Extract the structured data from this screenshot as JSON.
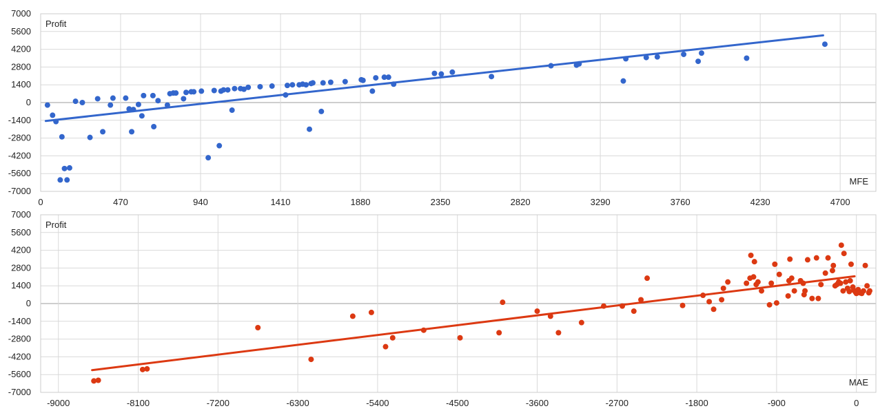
{
  "chart_data": [
    {
      "type": "scatter",
      "ylabel": "Profit",
      "xlabel": "MFE",
      "xlim": [
        0,
        4910
      ],
      "ylim": [
        -7000,
        7000
      ],
      "xticks": [
        0,
        470,
        940,
        1410,
        1880,
        2350,
        2820,
        3290,
        3760,
        4230,
        4700
      ],
      "yticks": [
        7000,
        5600,
        4200,
        2800,
        1400,
        0,
        -1400,
        -2800,
        -4200,
        -5600,
        -7000
      ],
      "grid": true,
      "legend": "none",
      "color": "#3366cc",
      "trendline": {
        "x": [
          30,
          4600
        ],
        "y": [
          -1450,
          5300
        ]
      },
      "points": [
        [
          40,
          -200
        ],
        [
          70,
          -1000
        ],
        [
          90,
          -1500
        ],
        [
          115,
          -6100
        ],
        [
          125,
          -2700
        ],
        [
          140,
          -5200
        ],
        [
          155,
          -6100
        ],
        [
          170,
          -5150
        ],
        [
          205,
          100
        ],
        [
          245,
          0
        ],
        [
          290,
          -2750
        ],
        [
          335,
          300
        ],
        [
          365,
          -2300
        ],
        [
          410,
          -200
        ],
        [
          425,
          350
        ],
        [
          500,
          350
        ],
        [
          520,
          -500
        ],
        [
          535,
          -2300
        ],
        [
          545,
          -550
        ],
        [
          575,
          -150
        ],
        [
          595,
          -1050
        ],
        [
          605,
          550
        ],
        [
          660,
          550
        ],
        [
          665,
          -1900
        ],
        [
          690,
          150
        ],
        [
          745,
          -200
        ],
        [
          760,
          700
        ],
        [
          780,
          750
        ],
        [
          795,
          750
        ],
        [
          840,
          300
        ],
        [
          855,
          800
        ],
        [
          885,
          850
        ],
        [
          900,
          850
        ],
        [
          945,
          900
        ],
        [
          985,
          -4350
        ],
        [
          1020,
          950
        ],
        [
          1050,
          -3400
        ],
        [
          1060,
          900
        ],
        [
          1075,
          1000
        ],
        [
          1100,
          1000
        ],
        [
          1125,
          -600
        ],
        [
          1140,
          1100
        ],
        [
          1175,
          1100
        ],
        [
          1195,
          1050
        ],
        [
          1220,
          1200
        ],
        [
          1290,
          1250
        ],
        [
          1360,
          1300
        ],
        [
          1440,
          600
        ],
        [
          1450,
          1350
        ],
        [
          1480,
          1400
        ],
        [
          1520,
          1400
        ],
        [
          1540,
          1450
        ],
        [
          1560,
          1400
        ],
        [
          1580,
          -2100
        ],
        [
          1590,
          1500
        ],
        [
          1600,
          1550
        ],
        [
          1650,
          -700
        ],
        [
          1660,
          1550
        ],
        [
          1705,
          1600
        ],
        [
          1790,
          1650
        ],
        [
          1885,
          1800
        ],
        [
          1895,
          1750
        ],
        [
          1950,
          900
        ],
        [
          1970,
          1950
        ],
        [
          2020,
          2000
        ],
        [
          2045,
          2000
        ],
        [
          2075,
          1450
        ],
        [
          2315,
          2300
        ],
        [
          2355,
          2250
        ],
        [
          2420,
          2400
        ],
        [
          2650,
          2050
        ],
        [
          3000,
          2900
        ],
        [
          3150,
          2950
        ],
        [
          3165,
          3050
        ],
        [
          3425,
          1700
        ],
        [
          3440,
          3450
        ],
        [
          3560,
          3550
        ],
        [
          3625,
          3600
        ],
        [
          3780,
          3800
        ],
        [
          3865,
          3250
        ],
        [
          3885,
          3900
        ],
        [
          4150,
          3500
        ],
        [
          4610,
          4600
        ]
      ]
    },
    {
      "type": "scatter",
      "ylabel": "Profit",
      "xlabel": "MAE",
      "xlim": [
        -9200,
        220
      ],
      "ylim": [
        -7000,
        7000
      ],
      "xticks": [
        -9000,
        -8100,
        -7200,
        -6300,
        -5400,
        -4500,
        -3600,
        -2700,
        -1800,
        -900,
        0
      ],
      "yticks": [
        7000,
        5600,
        4200,
        2800,
        1400,
        0,
        -1400,
        -2800,
        -4200,
        -5600,
        -7000
      ],
      "grid": true,
      "legend": "none",
      "color": "#dc3912",
      "trendline": {
        "x": [
          -8620,
          -20
        ],
        "y": [
          -5250,
          2150
        ]
      },
      "points": [
        [
          -8600,
          -6100
        ],
        [
          -8550,
          -6050
        ],
        [
          -8050,
          -5200
        ],
        [
          -8000,
          -5150
        ],
        [
          -6750,
          -1900
        ],
        [
          -6150,
          -4400
        ],
        [
          -5680,
          -1000
        ],
        [
          -5470,
          -700
        ],
        [
          -5310,
          -3400
        ],
        [
          -5230,
          -2700
        ],
        [
          -4880,
          -2100
        ],
        [
          -4470,
          -2700
        ],
        [
          -4030,
          -2300
        ],
        [
          -3990,
          100
        ],
        [
          -3600,
          -600
        ],
        [
          -3450,
          -1000
        ],
        [
          -3360,
          -2300
        ],
        [
          -3100,
          -1500
        ],
        [
          -2850,
          -200
        ],
        [
          -2640,
          -200
        ],
        [
          -2510,
          -600
        ],
        [
          -2430,
          300
        ],
        [
          -2360,
          2000
        ],
        [
          -1960,
          -150
        ],
        [
          -1730,
          650
        ],
        [
          -1660,
          150
        ],
        [
          -1610,
          -450
        ],
        [
          -1520,
          300
        ],
        [
          -1500,
          1200
        ],
        [
          -1450,
          1700
        ],
        [
          -1240,
          1600
        ],
        [
          -1200,
          2000
        ],
        [
          -1190,
          3800
        ],
        [
          -1160,
          2100
        ],
        [
          -1150,
          3300
        ],
        [
          -1130,
          1500
        ],
        [
          -1110,
          1700
        ],
        [
          -1070,
          1000
        ],
        [
          -980,
          -100
        ],
        [
          -960,
          1600
        ],
        [
          -920,
          3100
        ],
        [
          -900,
          50
        ],
        [
          -870,
          2300
        ],
        [
          -770,
          600
        ],
        [
          -760,
          1800
        ],
        [
          -750,
          3500
        ],
        [
          -730,
          2000
        ],
        [
          -700,
          1000
        ],
        [
          -630,
          1800
        ],
        [
          -600,
          1600
        ],
        [
          -590,
          700
        ],
        [
          -580,
          1000
        ],
        [
          -550,
          3450
        ],
        [
          -500,
          400
        ],
        [
          -450,
          3600
        ],
        [
          -430,
          400
        ],
        [
          -400,
          1500
        ],
        [
          -350,
          2400
        ],
        [
          -320,
          3600
        ],
        [
          -270,
          2600
        ],
        [
          -260,
          3000
        ],
        [
          -240,
          1400
        ],
        [
          -220,
          1500
        ],
        [
          -200,
          1700
        ],
        [
          -180,
          1600
        ],
        [
          -170,
          4600
        ],
        [
          -150,
          1000
        ],
        [
          -140,
          3950
        ],
        [
          -120,
          1700
        ],
        [
          -100,
          1200
        ],
        [
          -80,
          950
        ],
        [
          -70,
          1800
        ],
        [
          -60,
          3100
        ],
        [
          -40,
          1300
        ],
        [
          -30,
          1050
        ],
        [
          -10,
          900
        ],
        [
          0,
          800
        ],
        [
          20,
          1100
        ],
        [
          40,
          850
        ],
        [
          60,
          800
        ],
        [
          80,
          1000
        ],
        [
          100,
          3000
        ],
        [
          120,
          1400
        ],
        [
          140,
          850
        ],
        [
          150,
          1000
        ]
      ]
    }
  ]
}
